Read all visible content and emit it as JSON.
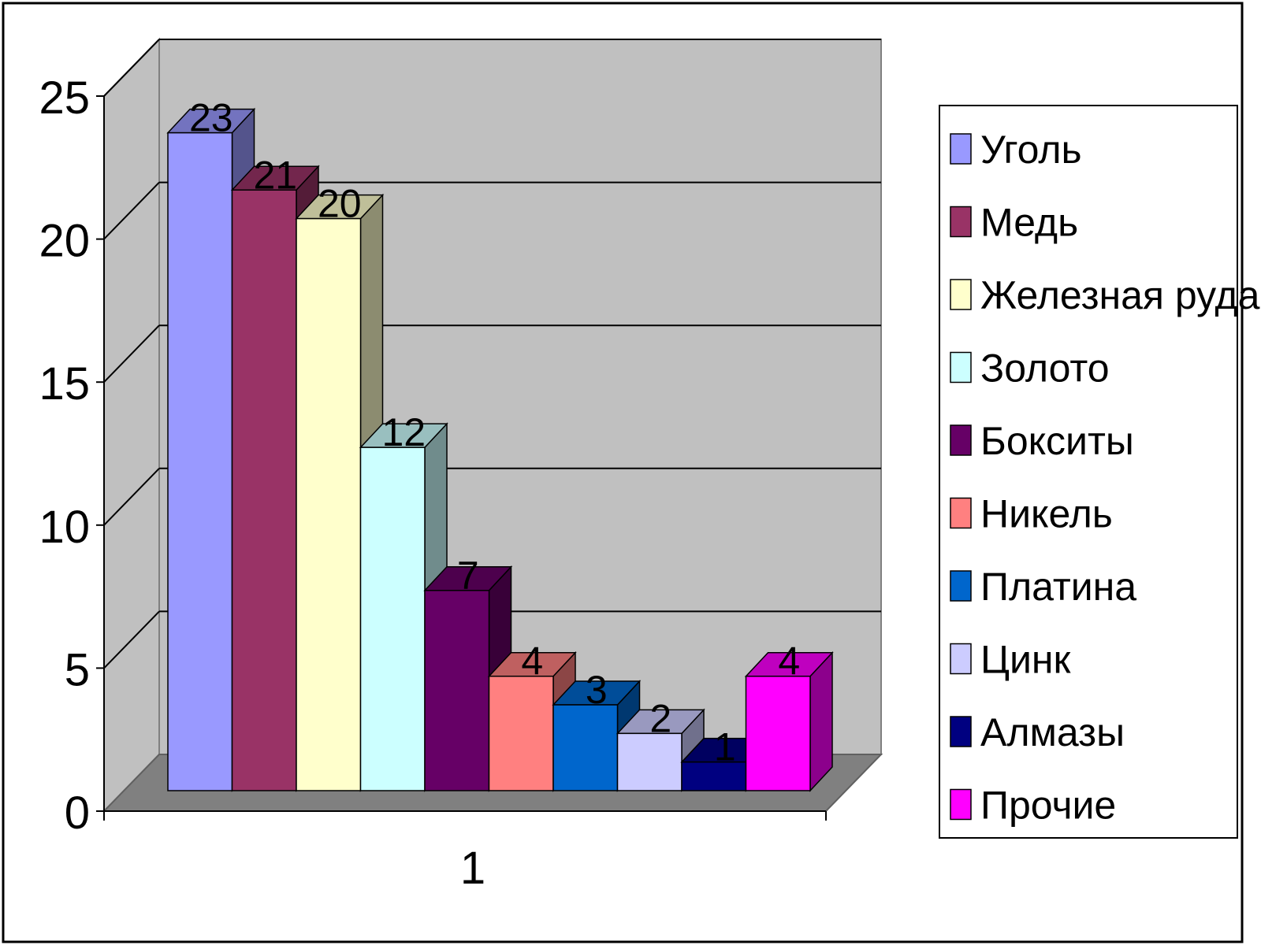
{
  "chart_data": {
    "type": "bar",
    "style": "3d-clustered-column",
    "categories": [
      "1"
    ],
    "ylim": [
      0,
      25
    ],
    "yticks": [
      0,
      5,
      10,
      15,
      20,
      25
    ],
    "grid": true,
    "legend_position": "right",
    "show_data_labels": true,
    "series": [
      {
        "name": "Уголь",
        "values": [
          23
        ],
        "color": "#9999ff"
      },
      {
        "name": "Медь",
        "values": [
          21
        ],
        "color": "#993366"
      },
      {
        "name": "Железная руда",
        "values": [
          20
        ],
        "color": "#ffffcc"
      },
      {
        "name": "Золото",
        "values": [
          12
        ],
        "color": "#ccffff"
      },
      {
        "name": "Бокситы",
        "values": [
          7
        ],
        "color": "#660066"
      },
      {
        "name": "Никель",
        "values": [
          4
        ],
        "color": "#ff8080"
      },
      {
        "name": "Платина",
        "values": [
          3
        ],
        "color": "#0066cc"
      },
      {
        "name": "Цинк",
        "values": [
          2
        ],
        "color": "#ccccff"
      },
      {
        "name": "Алмазы",
        "values": [
          1
        ],
        "color": "#000080"
      },
      {
        "name": "Прочие",
        "values": [
          4
        ],
        "color": "#ff00ff"
      }
    ]
  }
}
